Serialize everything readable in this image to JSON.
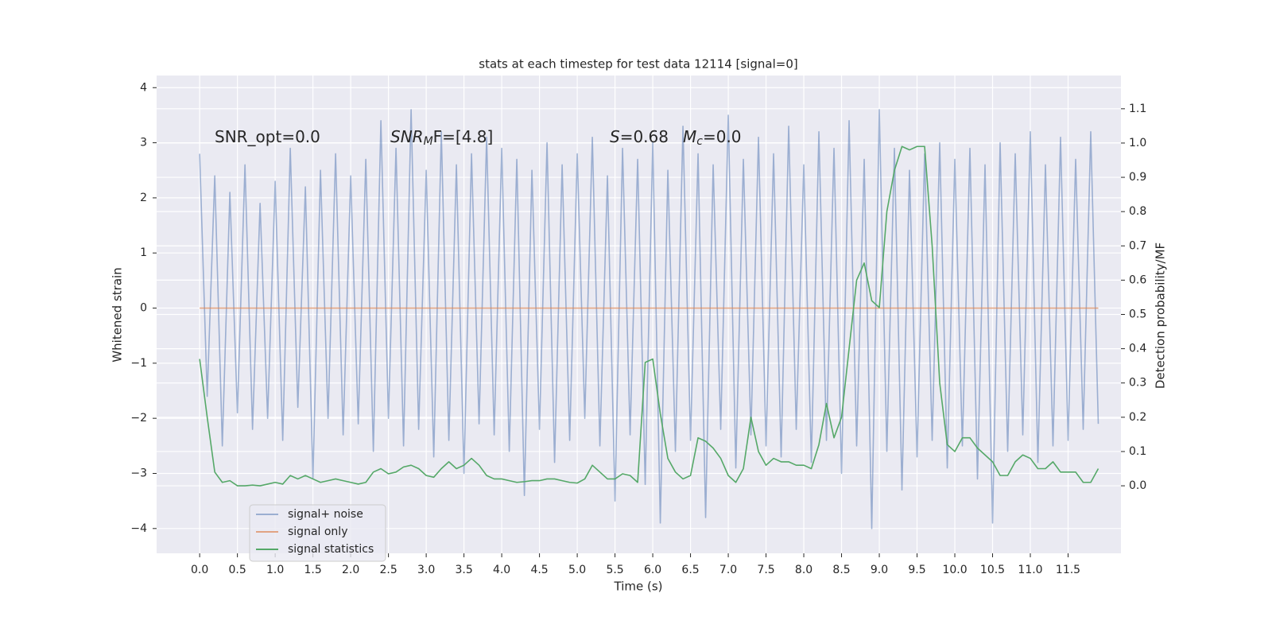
{
  "chart_data": {
    "type": "line",
    "title": "stats at each timestep for test data 12114 [signal=0]",
    "xlabel": "Time (s)",
    "ylabel": "Whitened strain",
    "y2label": "Detection probability/MF",
    "annotations": [
      {
        "text": "SNR_opt=0.0"
      },
      {
        "italic": "SNR",
        "sub": "M",
        "text": "F=[4.8]"
      },
      {
        "italic": "S",
        "text": "=0.68"
      },
      {
        "italic": "M",
        "sub": "c",
        "text": "=0.0"
      }
    ],
    "x": [
      0.0,
      0.1,
      0.2,
      0.3,
      0.4,
      0.5,
      0.6,
      0.7,
      0.8,
      0.9,
      1.0,
      1.1,
      1.2,
      1.3,
      1.4,
      1.5,
      1.6,
      1.7,
      1.8,
      1.9,
      2.0,
      2.1,
      2.2,
      2.3,
      2.4,
      2.5,
      2.6,
      2.7,
      2.8,
      2.9,
      3.0,
      3.1,
      3.2,
      3.3,
      3.4,
      3.5,
      3.6,
      3.7,
      3.8,
      3.9,
      4.0,
      4.1,
      4.2,
      4.3,
      4.4,
      4.5,
      4.6,
      4.7,
      4.8,
      4.9,
      5.0,
      5.1,
      5.2,
      5.3,
      5.4,
      5.5,
      5.6,
      5.7,
      5.8,
      5.9,
      6.0,
      6.1,
      6.2,
      6.3,
      6.4,
      6.5,
      6.6,
      6.7,
      6.8,
      6.9,
      7.0,
      7.1,
      7.2,
      7.3,
      7.4,
      7.5,
      7.6,
      7.7,
      7.8,
      7.9,
      8.0,
      8.1,
      8.2,
      8.3,
      8.4,
      8.5,
      8.6,
      8.7,
      8.8,
      8.9,
      9.0,
      9.1,
      9.2,
      9.3,
      9.4,
      9.5,
      9.6,
      9.7,
      9.8,
      9.9,
      10.0,
      10.1,
      10.2,
      10.3,
      10.4,
      10.5,
      10.6,
      10.7,
      10.8,
      10.9,
      11.0,
      11.1,
      11.2,
      11.3,
      11.4,
      11.5,
      11.6,
      11.7,
      11.8,
      11.9
    ],
    "series": [
      {
        "name": "signal+ noise",
        "color": "#4c72b0",
        "alpha": 0.5,
        "values": [
          2.8,
          -1.6,
          2.4,
          -2.5,
          2.1,
          -1.9,
          2.6,
          -2.2,
          1.9,
          -2.0,
          2.3,
          -2.4,
          2.9,
          -1.8,
          2.2,
          -3.1,
          2.5,
          -2.0,
          2.8,
          -2.3,
          2.4,
          -2.1,
          2.7,
          -2.6,
          3.4,
          -2.0,
          2.9,
          -2.5,
          3.6,
          -2.2,
          2.5,
          -2.7,
          3.2,
          -2.4,
          2.6,
          -3.0,
          2.8,
          -2.1,
          3.1,
          -2.3,
          2.9,
          -2.6,
          2.7,
          -3.4,
          2.5,
          -2.2,
          3.0,
          -2.8,
          2.6,
          -2.4,
          2.8,
          -2.0,
          3.1,
          -2.5,
          2.4,
          -3.5,
          2.9,
          -2.3,
          2.7,
          -3.2,
          3.0,
          -3.9,
          2.5,
          -2.6,
          3.3,
          -2.4,
          2.8,
          -3.8,
          2.6,
          -2.2,
          3.5,
          -2.9,
          2.7,
          -2.3,
          3.1,
          -2.5,
          2.8,
          -2.7,
          3.3,
          -2.2,
          2.6,
          -2.8,
          3.2,
          -2.4,
          2.9,
          -3.0,
          3.4,
          -2.5,
          2.7,
          -4.0,
          3.6,
          -2.6,
          2.9,
          -3.3,
          2.5,
          -2.7,
          2.8,
          -2.4,
          3.0,
          -2.9,
          2.7,
          -2.5,
          2.9,
          -3.1,
          2.6,
          -3.9,
          3.0,
          -2.6,
          2.8,
          -2.3,
          3.2,
          -2.8,
          2.6,
          -2.5,
          3.1,
          -2.4,
          2.7,
          -2.2,
          3.2,
          -2.1
        ]
      },
      {
        "name": "signal only",
        "color": "#dd8452",
        "alpha": 0.7,
        "values": [
          0,
          0,
          0,
          0,
          0,
          0,
          0,
          0,
          0,
          0,
          0,
          0,
          0,
          0,
          0,
          0,
          0,
          0,
          0,
          0,
          0,
          0,
          0,
          0,
          0,
          0,
          0,
          0,
          0,
          0,
          0,
          0,
          0,
          0,
          0,
          0,
          0,
          0,
          0,
          0,
          0,
          0,
          0,
          0,
          0,
          0,
          0,
          0,
          0,
          0,
          0,
          0,
          0,
          0,
          0,
          0,
          0,
          0,
          0,
          0,
          0,
          0,
          0,
          0,
          0,
          0,
          0,
          0,
          0,
          0,
          0,
          0,
          0,
          0,
          0,
          0,
          0,
          0,
          0,
          0,
          0,
          0,
          0,
          0,
          0,
          0,
          0,
          0,
          0,
          0,
          0,
          0,
          0,
          0,
          0,
          0,
          0,
          0,
          0,
          0,
          0,
          0,
          0,
          0,
          0,
          0,
          0,
          0,
          0,
          0,
          0,
          0,
          0,
          0,
          0,
          0,
          0,
          0,
          0,
          0
        ]
      },
      {
        "name": "signal statistics",
        "color": "#55a868",
        "alpha": 1,
        "axis": "y2",
        "values": [
          0.37,
          0.2,
          0.04,
          0.01,
          0.015,
          0.0,
          0.0,
          0.002,
          0.0,
          0.005,
          0.01,
          0.005,
          0.03,
          0.02,
          0.03,
          0.02,
          0.01,
          0.015,
          0.02,
          0.015,
          0.01,
          0.005,
          0.01,
          0.04,
          0.05,
          0.035,
          0.04,
          0.055,
          0.06,
          0.05,
          0.03,
          0.025,
          0.05,
          0.07,
          0.05,
          0.06,
          0.08,
          0.06,
          0.03,
          0.02,
          0.02,
          0.015,
          0.01,
          0.012,
          0.015,
          0.015,
          0.02,
          0.02,
          0.015,
          0.01,
          0.008,
          0.02,
          0.06,
          0.04,
          0.02,
          0.02,
          0.035,
          0.03,
          0.01,
          0.36,
          0.37,
          0.21,
          0.08,
          0.04,
          0.02,
          0.03,
          0.14,
          0.13,
          0.11,
          0.08,
          0.03,
          0.01,
          0.05,
          0.2,
          0.1,
          0.06,
          0.08,
          0.07,
          0.07,
          0.06,
          0.06,
          0.05,
          0.12,
          0.24,
          0.14,
          0.2,
          0.4,
          0.6,
          0.65,
          0.54,
          0.52,
          0.8,
          0.92,
          0.99,
          0.98,
          0.99,
          0.99,
          0.7,
          0.3,
          0.12,
          0.1,
          0.14,
          0.14,
          0.11,
          0.09,
          0.07,
          0.03,
          0.03,
          0.07,
          0.09,
          0.08,
          0.05,
          0.05,
          0.07,
          0.04,
          0.04,
          0.04,
          0.01,
          0.01,
          0.05
        ]
      }
    ],
    "xlim": [
      -0.57,
      12.2
    ],
    "ylim": [
      -4.45,
      4.22
    ],
    "y2lim": [
      -0.197,
      1.197
    ],
    "xticks": [
      {
        "value": 0,
        "label": "0.0"
      },
      0.5,
      {
        "value": 1,
        "label": "1.0"
      },
      1.5,
      {
        "value": 2,
        "label": "2.0"
      },
      2.5,
      {
        "value": 3,
        "label": "3.0"
      },
      3.5,
      {
        "value": 4,
        "label": "4.0"
      },
      4.5,
      {
        "value": 5,
        "label": "5.0"
      },
      5.5,
      {
        "value": 6,
        "label": "6.0"
      },
      6.5,
      {
        "value": 7,
        "label": "7.0"
      },
      7.5,
      {
        "value": 8,
        "label": "8.0"
      },
      8.5,
      {
        "value": 9,
        "label": "9.0"
      },
      9.5,
      {
        "value": 10,
        "label": "10.0"
      },
      10.5,
      {
        "value": 11,
        "label": "11.0"
      },
      11.5
    ],
    "yticks": [
      {
        "value": -4,
        "label": "−4"
      },
      {
        "value": -3,
        "label": "−3"
      },
      {
        "value": -2,
        "label": "−2"
      },
      {
        "value": -1,
        "label": "−1"
      },
      0,
      1,
      2,
      3,
      4
    ],
    "y2ticks": [
      {
        "value": 0,
        "label": "0.0"
      },
      0.1,
      0.2,
      0.3,
      0.4,
      0.5,
      0.6,
      0.7,
      0.8,
      0.9,
      {
        "value": 1,
        "label": "1.0"
      },
      1.1
    ],
    "grid": true
  }
}
